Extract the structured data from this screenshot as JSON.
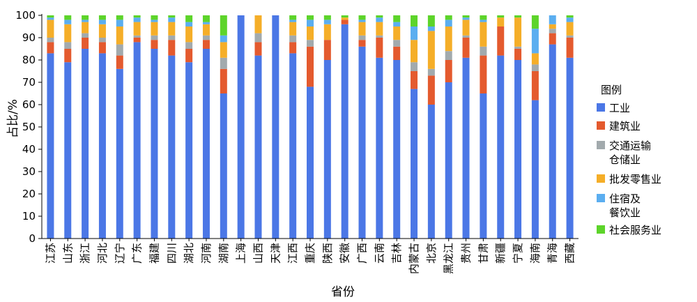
{
  "chart_data": {
    "type": "bar",
    "stacked": true,
    "xlabel": "省份",
    "ylabel": "占比/%",
    "ylim": [
      0,
      100
    ],
    "yticks": [
      0,
      10,
      20,
      30,
      40,
      50,
      60,
      70,
      80,
      90,
      100
    ],
    "grid": false,
    "legend_title": "图例",
    "legend_position": "right",
    "categories": [
      "江苏",
      "山东",
      "浙江",
      "河北",
      "辽宁",
      "广东",
      "福建",
      "四川",
      "湖北",
      "河南",
      "湖南",
      "上海",
      "山西",
      "天津",
      "江西",
      "重庆",
      "陕西",
      "安徽",
      "广西",
      "云南",
      "吉林",
      "内蒙古",
      "北京",
      "黑龙江",
      "贵州",
      "甘肃",
      "新疆",
      "宁夏",
      "海南",
      "青海",
      "西藏"
    ],
    "series": [
      {
        "name": "工业",
        "color": "#4B77E6",
        "values": [
          83,
          79,
          85,
          83,
          76,
          88,
          85,
          82,
          79,
          85,
          65,
          100,
          82,
          100,
          83,
          68,
          80,
          96,
          86,
          81,
          80,
          67,
          60,
          70,
          81,
          65,
          82,
          80,
          62,
          87,
          81
        ]
      },
      {
        "name": "建筑业",
        "color": "#E45A2E",
        "values": [
          5,
          6,
          5,
          5,
          6,
          2,
          4,
          7,
          6,
          4,
          11,
          0,
          6,
          0,
          5,
          18,
          9,
          2,
          3,
          9,
          6,
          8,
          13,
          10,
          9,
          17,
          13,
          5,
          13,
          5,
          9
        ]
      },
      {
        "name": "交通运输\n仓储业",
        "color": "#A2AAAD",
        "values": [
          2,
          3,
          2,
          2,
          5,
          1,
          2,
          2,
          3,
          2,
          5,
          0,
          4,
          0,
          3,
          3,
          0,
          0,
          2,
          1,
          3,
          4,
          3,
          4,
          1,
          4,
          0,
          1,
          3,
          2,
          1
        ]
      },
      {
        "name": "批发零售业",
        "color": "#F5AE28",
        "values": [
          8,
          8,
          5,
          6,
          8,
          6,
          6,
          6,
          7,
          5,
          7,
          0,
          8,
          0,
          6,
          6,
          7,
          1,
          6,
          6,
          6,
          10,
          17,
          11,
          7,
          11,
          4,
          13,
          5,
          2,
          6
        ]
      },
      {
        "name": "住宿及\n餐饮业",
        "color": "#5BAEF0",
        "values": [
          1,
          2,
          1,
          2,
          3,
          2,
          1,
          2,
          2,
          1,
          3,
          0,
          0,
          0,
          1,
          3,
          2,
          0,
          1,
          2,
          2,
          6,
          2,
          3,
          1,
          1,
          0,
          0,
          11,
          4,
          2
        ]
      },
      {
        "name": "社会服务业",
        "color": "#5DD42A",
        "values": [
          1,
          2,
          2,
          2,
          2,
          1,
          2,
          1,
          3,
          3,
          9,
          0,
          0,
          0,
          2,
          2,
          2,
          1,
          2,
          1,
          3,
          5,
          5,
          2,
          1,
          2,
          1,
          1,
          6,
          0,
          1
        ]
      }
    ]
  }
}
